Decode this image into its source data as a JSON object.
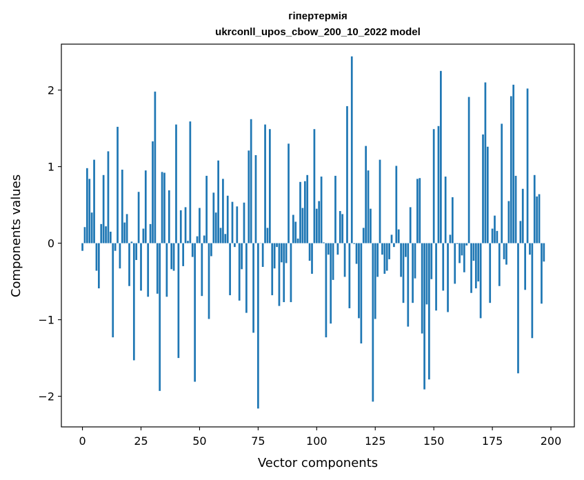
{
  "chart_data": {
    "type": "bar",
    "title": "гіпертермія",
    "subtitle": "ukrconll_upos_cbow_200_10_2022 model",
    "xlabel": "Vector components",
    "ylabel": "Components values",
    "xlim": [
      -9,
      210
    ],
    "ylim": [
      -2.4,
      2.6
    ],
    "xticks": [
      0,
      25,
      50,
      75,
      100,
      125,
      150,
      175,
      200
    ],
    "yticks": [
      -2,
      -1,
      0,
      1,
      2
    ],
    "ytick_labels": [
      "−2",
      "−1",
      "0",
      "1",
      "2"
    ],
    "bar_color": "#1f77b4",
    "values": [
      -0.1,
      0.21,
      0.98,
      0.84,
      0.4,
      1.09,
      -0.36,
      -0.59,
      0.25,
      0.89,
      0.22,
      1.2,
      0.15,
      -1.23,
      -0.1,
      1.52,
      -0.33,
      0.96,
      0.27,
      0.38,
      -0.56,
      0.02,
      -1.53,
      -0.22,
      0.67,
      -0.62,
      0.19,
      0.95,
      -0.7,
      0.25,
      1.33,
      1.98,
      -0.66,
      -1.93,
      0.93,
      0.92,
      -0.7,
      0.69,
      -0.34,
      -0.36,
      1.55,
      -1.5,
      0.43,
      -0.3,
      0.47,
      0.03,
      1.59,
      -0.18,
      -1.81,
      0.09,
      0.46,
      -0.69,
      0.1,
      0.88,
      -0.99,
      -0.17,
      0.66,
      0.4,
      1.08,
      0.2,
      0.84,
      0.12,
      0.62,
      -0.68,
      0.54,
      -0.05,
      0.48,
      -0.75,
      -0.34,
      0.53,
      -0.91,
      1.21,
      1.62,
      -1.17,
      1.15,
      -2.16,
      0.0,
      -0.31,
      1.55,
      0.2,
      1.49,
      -0.68,
      -0.33,
      -0.05,
      -0.82,
      -0.25,
      -0.77,
      -0.26,
      1.3,
      -0.77,
      0.37,
      0.28,
      0.06,
      0.8,
      0.46,
      0.81,
      0.89,
      -0.23,
      -0.4,
      1.49,
      0.45,
      0.55,
      0.87,
      0.01,
      -1.23,
      -0.15,
      -1.05,
      -0.48,
      0.88,
      -0.15,
      0.42,
      0.38,
      -0.44,
      1.79,
      -0.85,
      2.44,
      -0.01,
      -0.27,
      -0.98,
      -1.31,
      0.2,
      1.27,
      0.95,
      0.45,
      -2.07,
      -0.99,
      -0.44,
      1.09,
      -0.15,
      -0.4,
      -0.36,
      -0.21,
      0.11,
      -0.05,
      1.01,
      0.18,
      -0.44,
      -0.78,
      -0.18,
      -1.09,
      0.47,
      -0.78,
      -0.46,
      0.84,
      0.85,
      -1.18,
      -1.91,
      -0.8,
      -1.78,
      -0.47,
      1.49,
      -0.88,
      1.53,
      2.25,
      -0.62,
      0.87,
      -0.9,
      0.11,
      0.6,
      -0.53,
      -0.01,
      -0.26,
      -0.16,
      -0.38,
      -0.03,
      1.91,
      -0.65,
      -0.23,
      -0.59,
      -0.5,
      -0.98,
      1.42,
      2.1,
      1.26,
      -0.78,
      0.19,
      0.36,
      0.16,
      -0.56,
      1.56,
      -0.21,
      -0.28,
      0.55,
      1.92,
      2.07,
      0.88,
      -1.7,
      0.29,
      0.71,
      -0.61,
      2.02,
      -0.15,
      -1.24,
      0.89,
      0.61,
      0.64,
      -0.79,
      -0.24
    ]
  }
}
